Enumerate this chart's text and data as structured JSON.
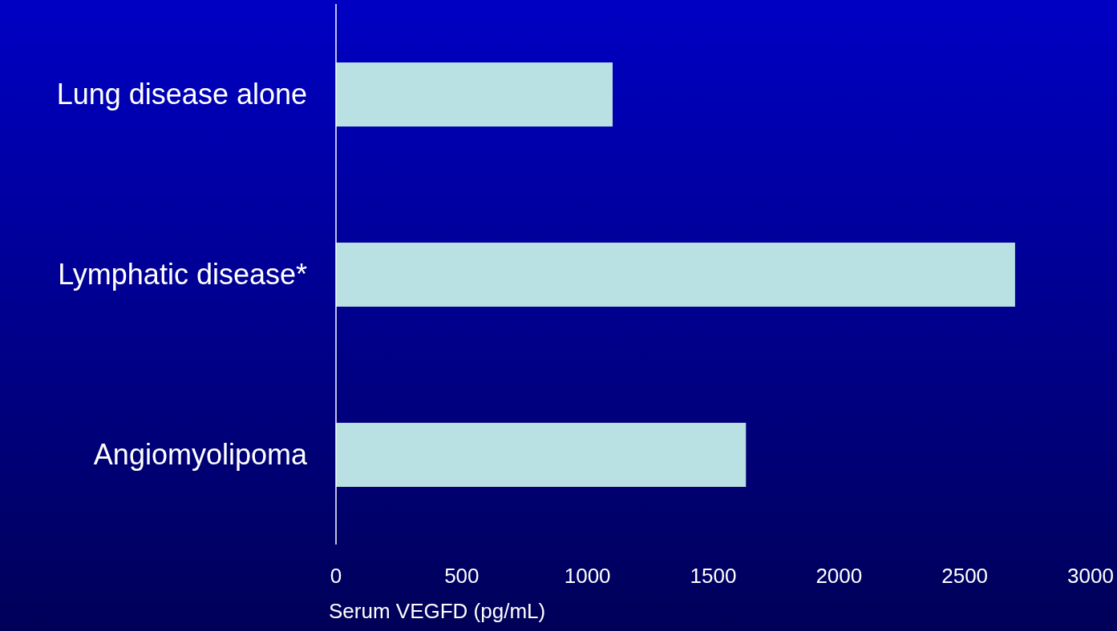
{
  "chart_data": {
    "type": "bar",
    "orientation": "horizontal",
    "xlabel": "Serum VEGFD (pg/mL)",
    "categories": [
      "Lung disease alone",
      "Lymphatic disease*",
      "Angiomyolipoma"
    ],
    "values": [
      1100,
      2700,
      1630
    ],
    "color": "#b9e0e3",
    "xlim": [
      0,
      3000
    ],
    "xticks": [
      0,
      500,
      1000,
      1500,
      2000,
      2500,
      3000
    ],
    "grid": false,
    "legend": false
  }
}
